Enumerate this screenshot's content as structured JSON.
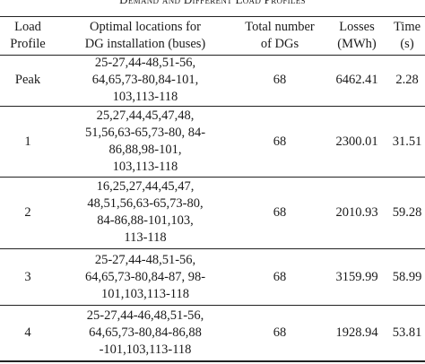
{
  "caption": "Demand and Different Load Profiles",
  "header": {
    "load_profile": [
      "Load",
      "Profile"
    ],
    "locations": [
      "Optimal locations for",
      "DG installation (buses)"
    ],
    "total_dgs": [
      "Total number",
      "of DGs"
    ],
    "losses": [
      "Losses",
      "(MWh)"
    ],
    "time": [
      "Time",
      "(s)"
    ]
  },
  "rows": [
    {
      "load_profile": "Peak",
      "locations": [
        "25-27,44-48,51-56,",
        "64,65,73-80,84-101,",
        "103,113-118"
      ],
      "total_dgs": "68",
      "losses": "6462.41",
      "time": "2.28"
    },
    {
      "load_profile": "1",
      "locations": [
        "25,27,44,45,47,48,",
        "51,56,63-65,73-80, 84-",
        "86,88,98-101,",
        "103,113-118"
      ],
      "total_dgs": "68",
      "losses": "2300.01",
      "time": "31.51"
    },
    {
      "load_profile": "2",
      "locations": [
        "16,25,27,44,45,47,",
        "48,51,56,63-65,73-80,",
        "84-86,88-101,103,",
        "113-118"
      ],
      "total_dgs": "68",
      "losses": "2010.93",
      "time": "59.28"
    },
    {
      "load_profile": "3",
      "locations": [
        "25-27,44-48,51-56,",
        "64,65,73-80,84-87, 98-",
        "101,103,113-118"
      ],
      "total_dgs": "68",
      "losses": "3159.99",
      "time": "58.99"
    },
    {
      "load_profile": "4",
      "locations": [
        "25-27,44-46,48,51-56,",
        "64,65,73-80,84-86,88",
        "-101,103,113-118"
      ],
      "total_dgs": "68",
      "losses": "1928.94",
      "time": "53.81"
    }
  ]
}
